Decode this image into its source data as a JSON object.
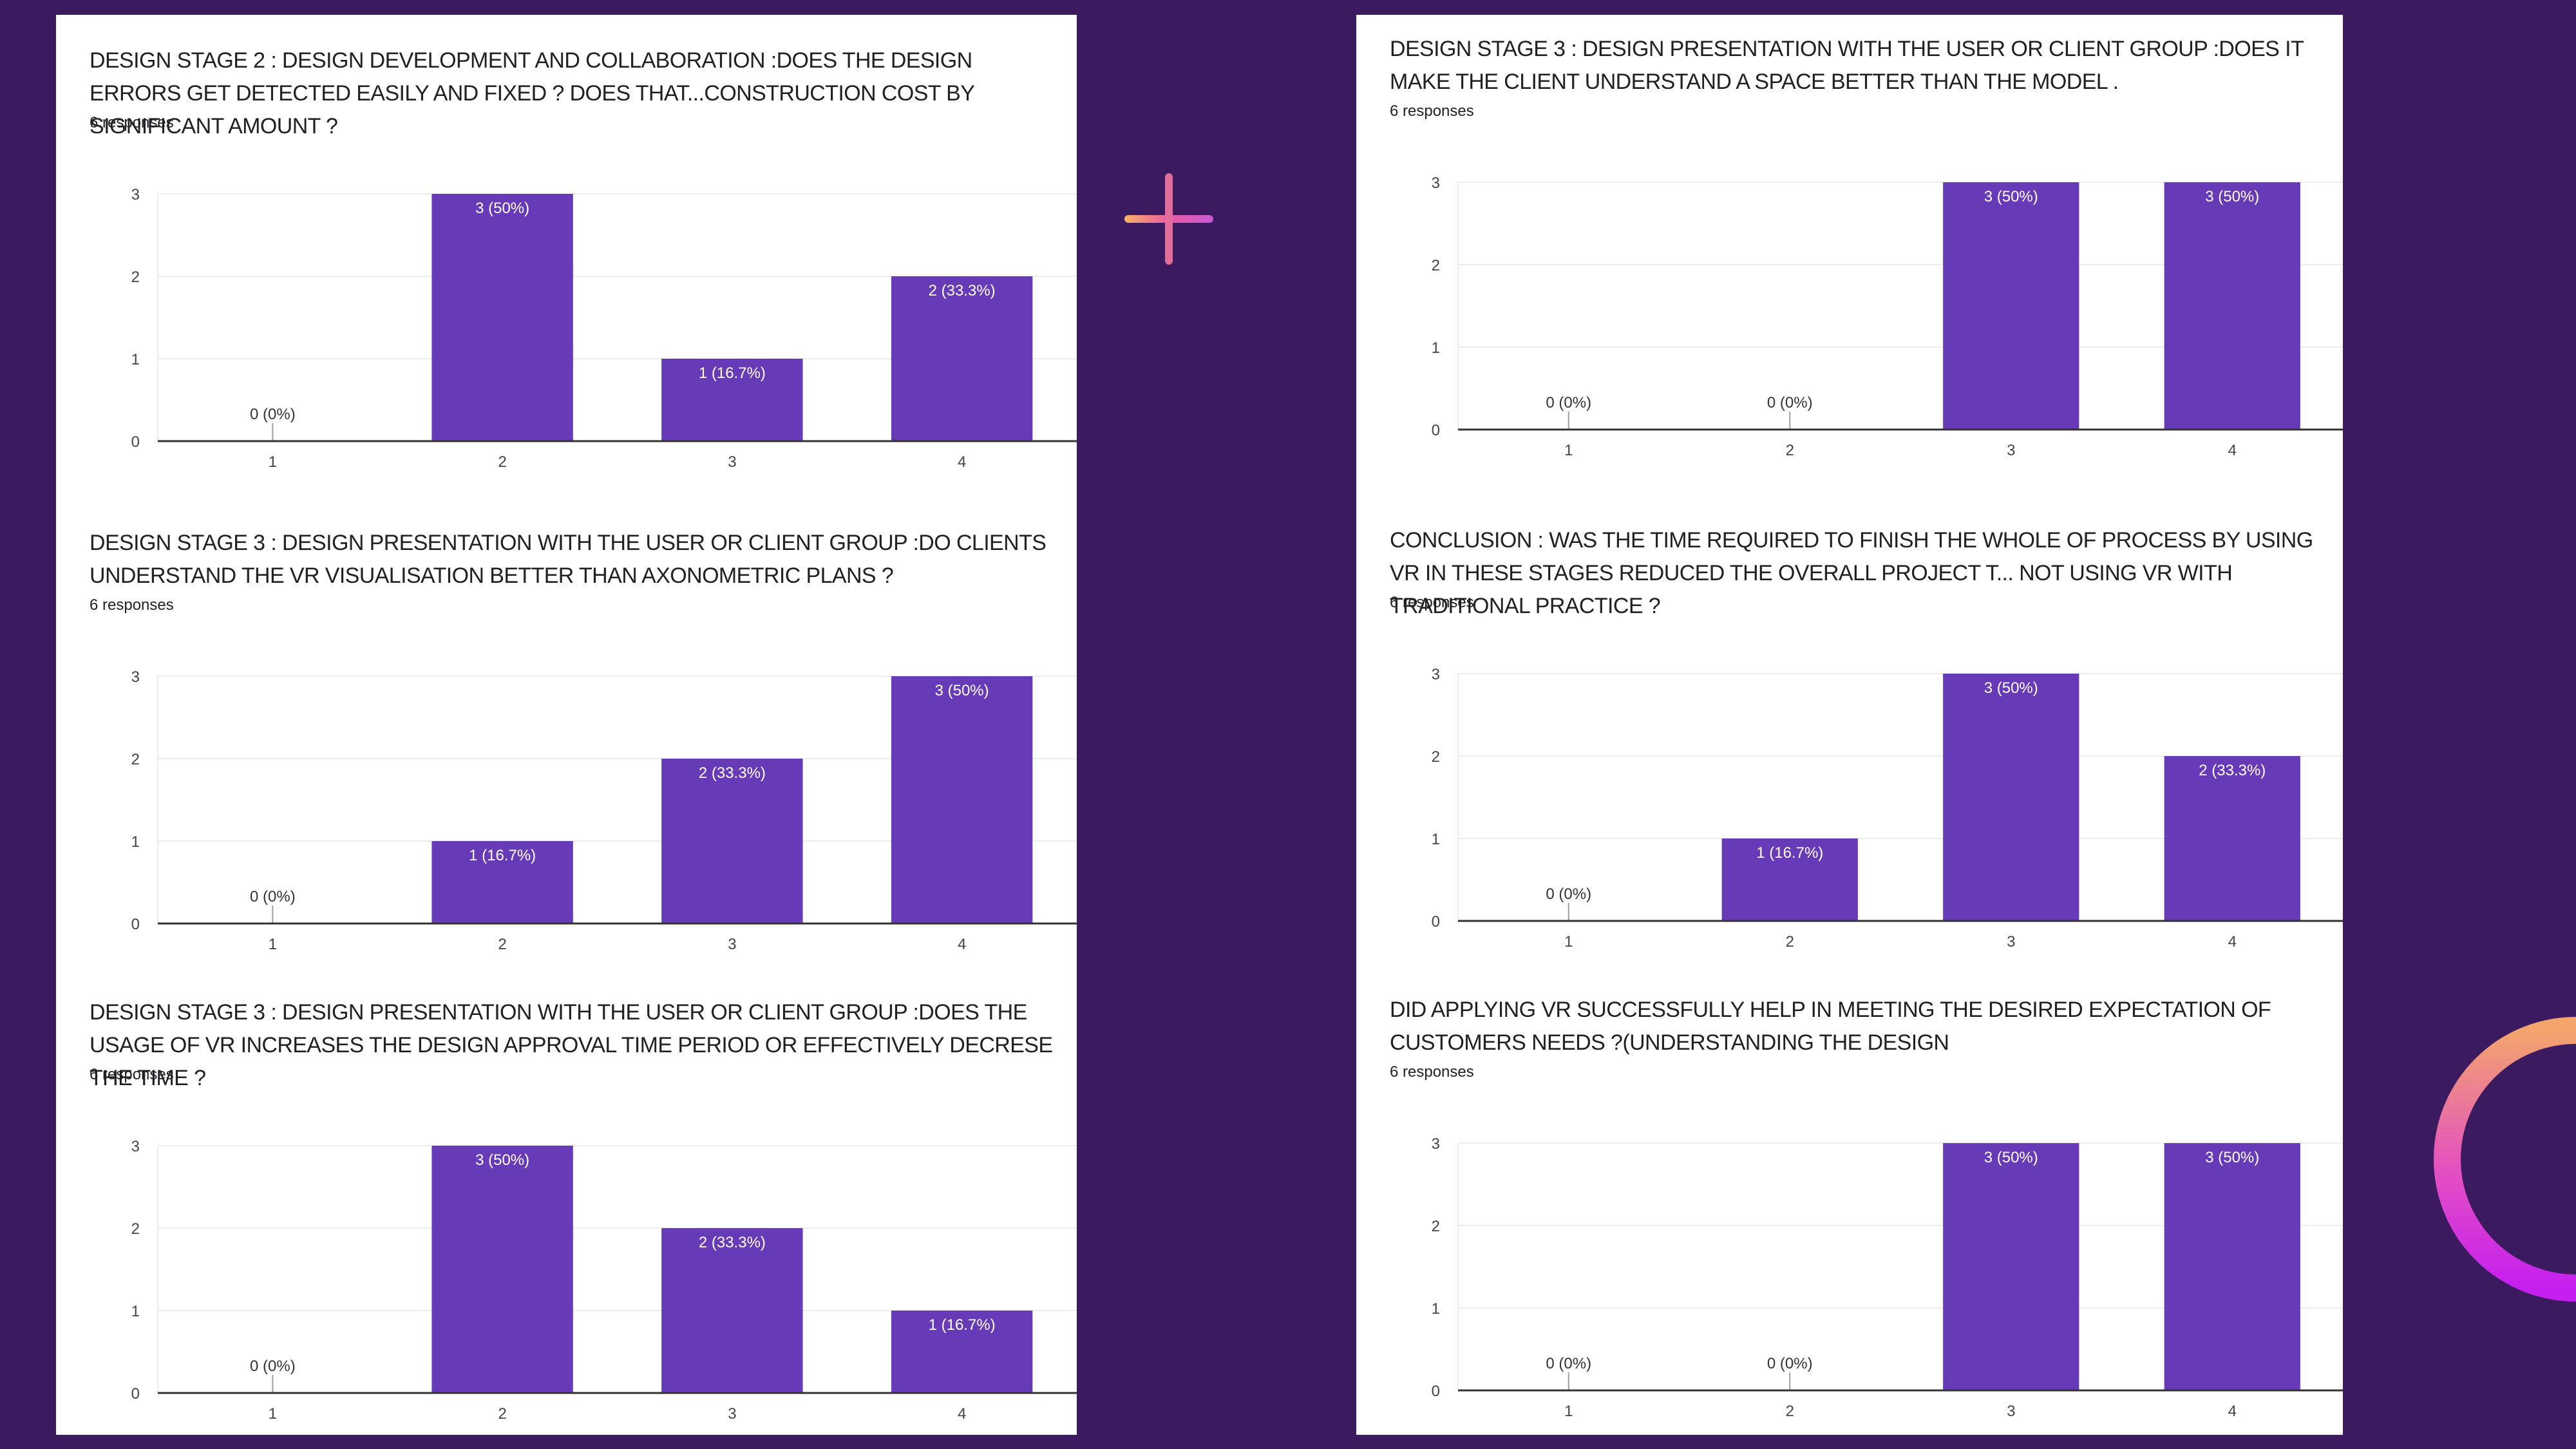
{
  "panels": [
    {
      "charts": [
        {
          "type": "bar",
          "title": "DESIGN STAGE 2 : DESIGN DEVELOPMENT AND COLLABORATION  :DOES THE DESIGN ERRORS GET DETECTED EASILY AND FIXED ? DOES THAT...CONSTRUCTION COST BY SIGNIFICANT AMOUNT ?",
          "subtitle": "6 responses",
          "categories": [
            "1",
            "2",
            "3",
            "4"
          ],
          "values": [
            0,
            3,
            1,
            2
          ],
          "labels": [
            "0 (0%)",
            "3 (50%)",
            "1 (16.7%)",
            "2 (33.3%)"
          ],
          "yticks": [
            "0",
            "1",
            "2",
            "3"
          ],
          "ylim": [
            0,
            3
          ]
        },
        {
          "type": "bar",
          "title": "DESIGN STAGE 3 : DESIGN PRESENTATION WITH THE USER OR CLIENT GROUP :DO CLIENTS UNDERSTAND THE VR VISUALISATION BETTER THAN AXONOMETRIC PLANS ?",
          "subtitle": "6 responses",
          "categories": [
            "1",
            "2",
            "3",
            "4"
          ],
          "values": [
            0,
            1,
            2,
            3
          ],
          "labels": [
            "0 (0%)",
            "1 (16.7%)",
            "2 (33.3%)",
            "3 (50%)"
          ],
          "yticks": [
            "0",
            "1",
            "2",
            "3"
          ],
          "ylim": [
            0,
            3
          ]
        },
        {
          "type": "bar",
          "title": "DESIGN STAGE 3 : DESIGN PRESENTATION WITH THE USER OR CLIENT GROUP :DOES THE USAGE OF VR INCREASES THE DESIGN APPROVAL TIME PERIOD OR EFFECTIVELY DECRESE THE TIME ?",
          "subtitle": "6 responses",
          "categories": [
            "1",
            "2",
            "3",
            "4"
          ],
          "values": [
            0,
            3,
            2,
            1
          ],
          "labels": [
            "0 (0%)",
            "3 (50%)",
            "2 (33.3%)",
            "1 (16.7%)"
          ],
          "yticks": [
            "0",
            "1",
            "2",
            "3"
          ],
          "ylim": [
            0,
            3
          ]
        }
      ]
    },
    {
      "charts": [
        {
          "type": "bar",
          "title": "DESIGN STAGE 3 : DESIGN PRESENTATION WITH THE USER OR CLIENT GROUP :DOES IT MAKE THE CLIENT UNDERSTAND A SPACE BETTER THAN THE MODEL .",
          "subtitle": "6 responses",
          "categories": [
            "1",
            "2",
            "3",
            "4"
          ],
          "values": [
            0,
            0,
            3,
            3
          ],
          "labels": [
            "0 (0%)",
            "0 (0%)",
            "3 (50%)",
            "3 (50%)"
          ],
          "yticks": [
            "0",
            "1",
            "2",
            "3"
          ],
          "ylim": [
            0,
            3
          ]
        },
        {
          "type": "bar",
          "title": "CONCLUSION : WAS THE TIME REQUIRED TO FINISH THE WHOLE OF PROCESS BY USING VR IN THESE STAGES REDUCED THE OVERALL PROJECT T... NOT USING VR WITH TRADITIONAL PRACTICE ?",
          "subtitle": "6 responses",
          "categories": [
            "1",
            "2",
            "3",
            "4"
          ],
          "values": [
            0,
            1,
            3,
            2
          ],
          "labels": [
            "0 (0%)",
            "1 (16.7%)",
            "3 (50%)",
            "2 (33.3%)"
          ],
          "yticks": [
            "0",
            "1",
            "2",
            "3"
          ],
          "ylim": [
            0,
            3
          ]
        },
        {
          "type": "bar",
          "title": "DID APPLYING VR SUCCESSFULLY HELP IN MEETING THE DESIRED EXPECTATION OF CUSTOMERS NEEDS ?(UNDERSTANDING THE DESIGN",
          "subtitle": "6 responses",
          "categories": [
            "1",
            "2",
            "3",
            "4"
          ],
          "values": [
            0,
            0,
            3,
            3
          ],
          "labels": [
            "0 (0%)",
            "0 (0%)",
            "3 (50%)",
            "3 (50%)"
          ],
          "yticks": [
            "0",
            "1",
            "2",
            "3"
          ],
          "ylim": [
            0,
            3
          ]
        }
      ]
    }
  ],
  "colors": {
    "bar": "#673ab7",
    "background": "#3b1a60",
    "panel": "#ffffff",
    "plus_gradient": [
      "#f7b267",
      "#e85aa0",
      "#c95ad6"
    ],
    "ring_gradient": [
      "#f3a56c",
      "#e34fc2",
      "#c51ff0"
    ]
  },
  "decorations": {
    "plus": "plus-icon",
    "ring": "ring-arc-icon"
  }
}
